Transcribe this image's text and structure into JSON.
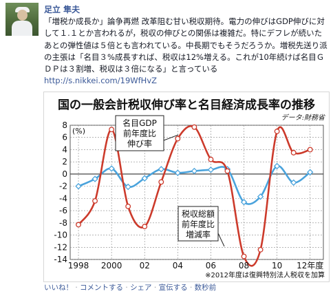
{
  "post": {
    "author": "足立 隼夫",
    "text_parts": [
      "「増税か成長か」論争再燃 改革阻む甘い税収期待。電力の伸びはGDP伸びに対して１.１とか言われるが，税収の伸びとの関係は複雑だ。特にデフレが続いたあとの弾性値は５倍とも言われている。中長期でもそうだろうか。増税先送り派の主張は「名目３%成長すれば、税収は12%増える。これが10年続けば名目ＧＤＰは３割増、税収は３倍になる」と言っている",
      "http://s.nikkei.com/19WfHvZ"
    ]
  },
  "actions": {
    "like": "いいね！",
    "comment": "コメントする",
    "share": "シェア",
    "promote": "宣伝する",
    "tail": "数秒前"
  },
  "chart_data": {
    "type": "line",
    "title": "国の一般会計税収伸び率と名目経済成長率の推移",
    "source": "データ:財務省",
    "note": "※2012年度は復興特別法人税収を加算",
    "ylabel": "(%)",
    "ylim": [
      -14,
      8
    ],
    "y_ticks": [
      8,
      6,
      4,
      2,
      0,
      -2,
      -4,
      -6,
      -8,
      -10,
      -12,
      -14
    ],
    "x_tick_labels": [
      {
        "x": 1998,
        "label": "1998"
      },
      {
        "x": 2000,
        "label": "2000"
      },
      {
        "x": 2002,
        "label": "02"
      },
      {
        "x": 2004,
        "label": "04"
      },
      {
        "x": 2006,
        "label": "06"
      },
      {
        "x": 2008,
        "label": "08"
      },
      {
        "x": 2010,
        "label": "10"
      },
      {
        "x": 2012,
        "label": "12年度"
      }
    ],
    "xlim": [
      1997.5,
      2012.8
    ],
    "grid": true,
    "series": [
      {
        "name": "名目GDP前年度比伸び率",
        "label_lines": [
          "名目GDP",
          "前年度比",
          "伸び率"
        ],
        "color": "#4aa3dc",
        "x": [
          1998,
          1999,
          2000,
          2001,
          2002,
          2003,
          2004,
          2005,
          2006,
          2007,
          2008,
          2009,
          2010,
          2011,
          2012
        ],
        "values": [
          -2.0,
          -0.8,
          0.9,
          -2.1,
          -0.7,
          0.8,
          0.2,
          0.5,
          0.7,
          0.8,
          -4.6,
          -3.7,
          1.3,
          -1.4,
          0.3
        ]
      },
      {
        "name": "税収総額前年度比増減率",
        "label_lines": [
          "税収総額",
          "前年度比",
          "増減率"
        ],
        "color": "#cc3a2b",
        "x": [
          1998,
          1999,
          2000,
          2001,
          2002,
          2003,
          2004,
          2005,
          2006,
          2007,
          2008,
          2009,
          2010,
          2011,
          2012
        ],
        "values": [
          -8.3,
          -4.4,
          7.3,
          -5.3,
          -8.6,
          -1.3,
          5.8,
          7.7,
          2.4,
          0.5,
          -13.5,
          -12.4,
          7.0,
          3.5,
          4.0
        ]
      }
    ]
  }
}
